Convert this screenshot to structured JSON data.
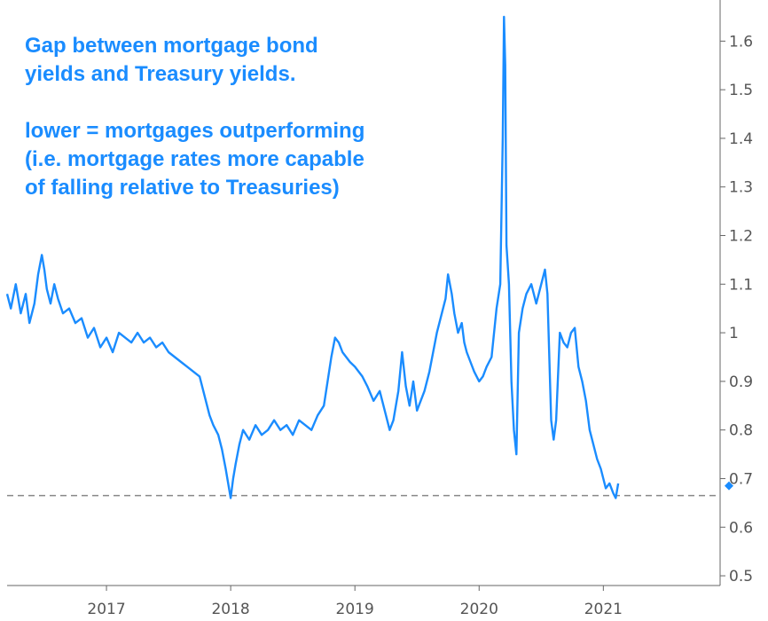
{
  "annotation": {
    "paragraph1": [
      "Gap between mortgage bond",
      "yields and Treasury yields."
    ],
    "paragraph2": [
      "lower = mortgages outperforming",
      "(i.e. mortgage rates more capable",
      "of falling relative to Treasuries)"
    ]
  },
  "colors": {
    "series": "#1a8cff",
    "reference_line": "#888888",
    "axis": "#666666",
    "text": "#1a8cff"
  },
  "chart_data": {
    "type": "line",
    "title": "",
    "xlabel": "",
    "ylabel": "",
    "xlim": [
      2016.2,
      2021.94
    ],
    "ylim": [
      0.48,
      1.67
    ],
    "y_axis_position": "right",
    "grid": false,
    "x_ticks": [
      "2017",
      "2018",
      "2019",
      "2020",
      "2021"
    ],
    "y_ticks": [
      "0.5",
      "0.6",
      "0.7",
      "0.8",
      "0.9",
      "1",
      "1.1",
      "1.2",
      "1.3",
      "1.4",
      "1.5",
      "1.6"
    ],
    "reference_line": {
      "y": 0.665,
      "style": "dashed"
    },
    "last_value_marker": {
      "y": 0.685
    },
    "series": [
      {
        "values": [
          [
            2016.2,
            1.08
          ],
          [
            2016.23,
            1.05
          ],
          [
            2016.27,
            1.1
          ],
          [
            2016.31,
            1.04
          ],
          [
            2016.35,
            1.08
          ],
          [
            2016.38,
            1.02
          ],
          [
            2016.42,
            1.06
          ],
          [
            2016.45,
            1.12
          ],
          [
            2016.48,
            1.16
          ],
          [
            2016.5,
            1.13
          ],
          [
            2016.52,
            1.09
          ],
          [
            2016.55,
            1.06
          ],
          [
            2016.58,
            1.1
          ],
          [
            2016.61,
            1.07
          ],
          [
            2016.65,
            1.04
          ],
          [
            2016.7,
            1.05
          ],
          [
            2016.75,
            1.02
          ],
          [
            2016.8,
            1.03
          ],
          [
            2016.85,
            0.99
          ],
          [
            2016.9,
            1.01
          ],
          [
            2016.95,
            0.97
          ],
          [
            2017.0,
            0.99
          ],
          [
            2017.05,
            0.96
          ],
          [
            2017.1,
            1.0
          ],
          [
            2017.15,
            0.99
          ],
          [
            2017.2,
            0.98
          ],
          [
            2017.25,
            1.0
          ],
          [
            2017.3,
            0.98
          ],
          [
            2017.35,
            0.99
          ],
          [
            2017.4,
            0.97
          ],
          [
            2017.45,
            0.98
          ],
          [
            2017.5,
            0.96
          ],
          [
            2017.55,
            0.95
          ],
          [
            2017.6,
            0.94
          ],
          [
            2017.65,
            0.93
          ],
          [
            2017.7,
            0.92
          ],
          [
            2017.75,
            0.91
          ],
          [
            2017.8,
            0.86
          ],
          [
            2017.83,
            0.83
          ],
          [
            2017.86,
            0.81
          ],
          [
            2017.9,
            0.79
          ],
          [
            2017.93,
            0.76
          ],
          [
            2017.96,
            0.72
          ],
          [
            2018.0,
            0.66
          ],
          [
            2018.02,
            0.7
          ],
          [
            2018.04,
            0.73
          ],
          [
            2018.07,
            0.77
          ],
          [
            2018.1,
            0.8
          ],
          [
            2018.15,
            0.78
          ],
          [
            2018.2,
            0.81
          ],
          [
            2018.25,
            0.79
          ],
          [
            2018.3,
            0.8
          ],
          [
            2018.35,
            0.82
          ],
          [
            2018.4,
            0.8
          ],
          [
            2018.45,
            0.81
          ],
          [
            2018.5,
            0.79
          ],
          [
            2018.55,
            0.82
          ],
          [
            2018.6,
            0.81
          ],
          [
            2018.65,
            0.8
          ],
          [
            2018.7,
            0.83
          ],
          [
            2018.75,
            0.85
          ],
          [
            2018.78,
            0.9
          ],
          [
            2018.81,
            0.95
          ],
          [
            2018.84,
            0.99
          ],
          [
            2018.87,
            0.98
          ],
          [
            2018.9,
            0.96
          ],
          [
            2018.93,
            0.95
          ],
          [
            2018.96,
            0.94
          ],
          [
            2019.0,
            0.93
          ],
          [
            2019.03,
            0.92
          ],
          [
            2019.06,
            0.91
          ],
          [
            2019.1,
            0.89
          ],
          [
            2019.15,
            0.86
          ],
          [
            2019.2,
            0.88
          ],
          [
            2019.25,
            0.83
          ],
          [
            2019.28,
            0.8
          ],
          [
            2019.31,
            0.82
          ],
          [
            2019.35,
            0.88
          ],
          [
            2019.38,
            0.96
          ],
          [
            2019.41,
            0.89
          ],
          [
            2019.44,
            0.85
          ],
          [
            2019.47,
            0.9
          ],
          [
            2019.5,
            0.84
          ],
          [
            2019.53,
            0.86
          ],
          [
            2019.56,
            0.88
          ],
          [
            2019.6,
            0.92
          ],
          [
            2019.63,
            0.96
          ],
          [
            2019.66,
            1.0
          ],
          [
            2019.7,
            1.04
          ],
          [
            2019.73,
            1.07
          ],
          [
            2019.75,
            1.12
          ],
          [
            2019.78,
            1.08
          ],
          [
            2019.8,
            1.04
          ],
          [
            2019.83,
            1.0
          ],
          [
            2019.86,
            1.02
          ],
          [
            2019.88,
            0.98
          ],
          [
            2019.9,
            0.96
          ],
          [
            2019.93,
            0.94
          ],
          [
            2019.96,
            0.92
          ],
          [
            2020.0,
            0.9
          ],
          [
            2020.03,
            0.91
          ],
          [
            2020.06,
            0.93
          ],
          [
            2020.1,
            0.95
          ],
          [
            2020.14,
            1.05
          ],
          [
            2020.17,
            1.1
          ],
          [
            2020.19,
            1.4
          ],
          [
            2020.2,
            1.65
          ],
          [
            2020.21,
            1.55
          ],
          [
            2020.22,
            1.18
          ],
          [
            2020.24,
            1.1
          ],
          [
            2020.26,
            0.9
          ],
          [
            2020.28,
            0.8
          ],
          [
            2020.3,
            0.75
          ],
          [
            2020.32,
            1.0
          ],
          [
            2020.35,
            1.05
          ],
          [
            2020.38,
            1.08
          ],
          [
            2020.42,
            1.1
          ],
          [
            2020.46,
            1.06
          ],
          [
            2020.5,
            1.1
          ],
          [
            2020.53,
            1.13
          ],
          [
            2020.55,
            1.08
          ],
          [
            2020.58,
            0.82
          ],
          [
            2020.6,
            0.78
          ],
          [
            2020.62,
            0.82
          ],
          [
            2020.65,
            1.0
          ],
          [
            2020.68,
            0.98
          ],
          [
            2020.71,
            0.97
          ],
          [
            2020.74,
            1.0
          ],
          [
            2020.77,
            1.01
          ],
          [
            2020.8,
            0.93
          ],
          [
            2020.83,
            0.9
          ],
          [
            2020.86,
            0.86
          ],
          [
            2020.89,
            0.8
          ],
          [
            2020.92,
            0.77
          ],
          [
            2020.95,
            0.74
          ],
          [
            2020.98,
            0.72
          ],
          [
            2021.0,
            0.7
          ],
          [
            2021.02,
            0.68
          ],
          [
            2021.05,
            0.69
          ],
          [
            2021.08,
            0.67
          ],
          [
            2021.1,
            0.66
          ],
          [
            2021.12,
            0.69
          ]
        ]
      }
    ]
  }
}
